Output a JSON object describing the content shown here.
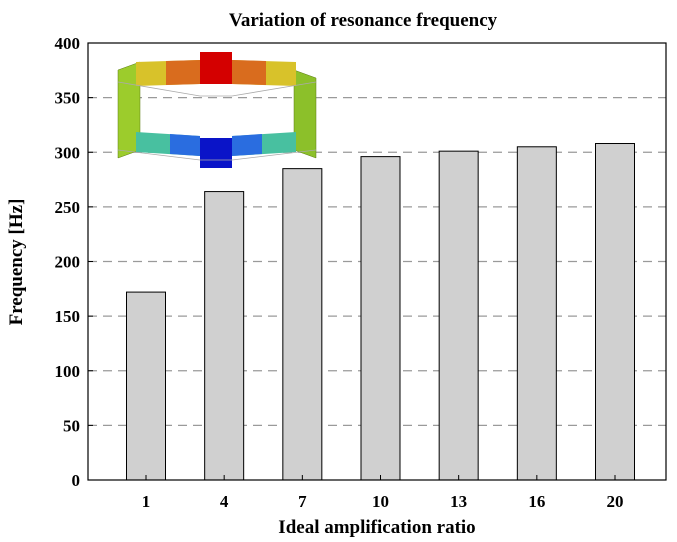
{
  "chart_data": {
    "type": "bar",
    "title": "Variation of resonance frequency",
    "xlabel": "Ideal amplification ratio",
    "ylabel": "Frequency [Hz]",
    "categories": [
      "1",
      "4",
      "7",
      "10",
      "13",
      "16",
      "20"
    ],
    "values": [
      172,
      264,
      285,
      296,
      301,
      305,
      308
    ],
    "ylim": [
      0,
      400
    ],
    "yticks": [
      "0",
      "50",
      "100",
      "150",
      "200",
      "250",
      "300",
      "350",
      "400"
    ],
    "grid": "horizontal dashed",
    "bar_color": "#d0d0d0",
    "inset": "FEA mode-shape image of the amplification frame"
  }
}
